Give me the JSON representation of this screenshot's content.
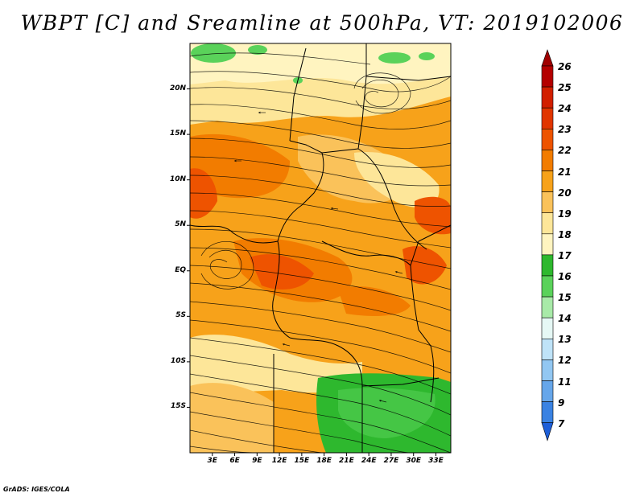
{
  "title": "WBPT [C] and Sreamline at 500hPa, VT: 2019102006",
  "credit": "GrADS: IGES/COLA",
  "map": {
    "lat_labels": [
      "20N",
      "15N",
      "10N",
      "5N",
      "EQ",
      "5S",
      "10S",
      "15S"
    ],
    "lat_values": [
      20,
      15,
      10,
      5,
      0,
      -5,
      -10,
      -15
    ],
    "lon_labels": [
      "3E",
      "6E",
      "9E",
      "12E",
      "15E",
      "18E",
      "21E",
      "24E",
      "27E",
      "30E",
      "33E"
    ],
    "lon_values": [
      3,
      6,
      9,
      12,
      15,
      18,
      21,
      24,
      27,
      30,
      33
    ],
    "lat_range": [
      -20,
      25
    ],
    "lon_range": [
      0,
      35
    ],
    "field": "WBPT [C]",
    "level": "500hPa"
  },
  "colorbar": {
    "labels": [
      "26",
      "25",
      "24",
      "23",
      "22",
      "21",
      "20",
      "19",
      "18",
      "17",
      "16",
      "15",
      "14",
      "13",
      "12",
      "11",
      "9",
      "7"
    ],
    "colors": [
      "#b40000",
      "#d21f00",
      "#e13500",
      "#ee5300",
      "#f27c00",
      "#f7a21a",
      "#fac25a",
      "#fde699",
      "#fff4c0",
      "#2eb82e",
      "#5ad25a",
      "#a8eaa8",
      "#e6f8f5",
      "#bfe3f8",
      "#92c7f2",
      "#66a6ea",
      "#3a82e2",
      "#1e5fd8"
    ],
    "top_triangle_color": "#a00000",
    "bottom_triangle_color": "#1e5fd8"
  }
}
